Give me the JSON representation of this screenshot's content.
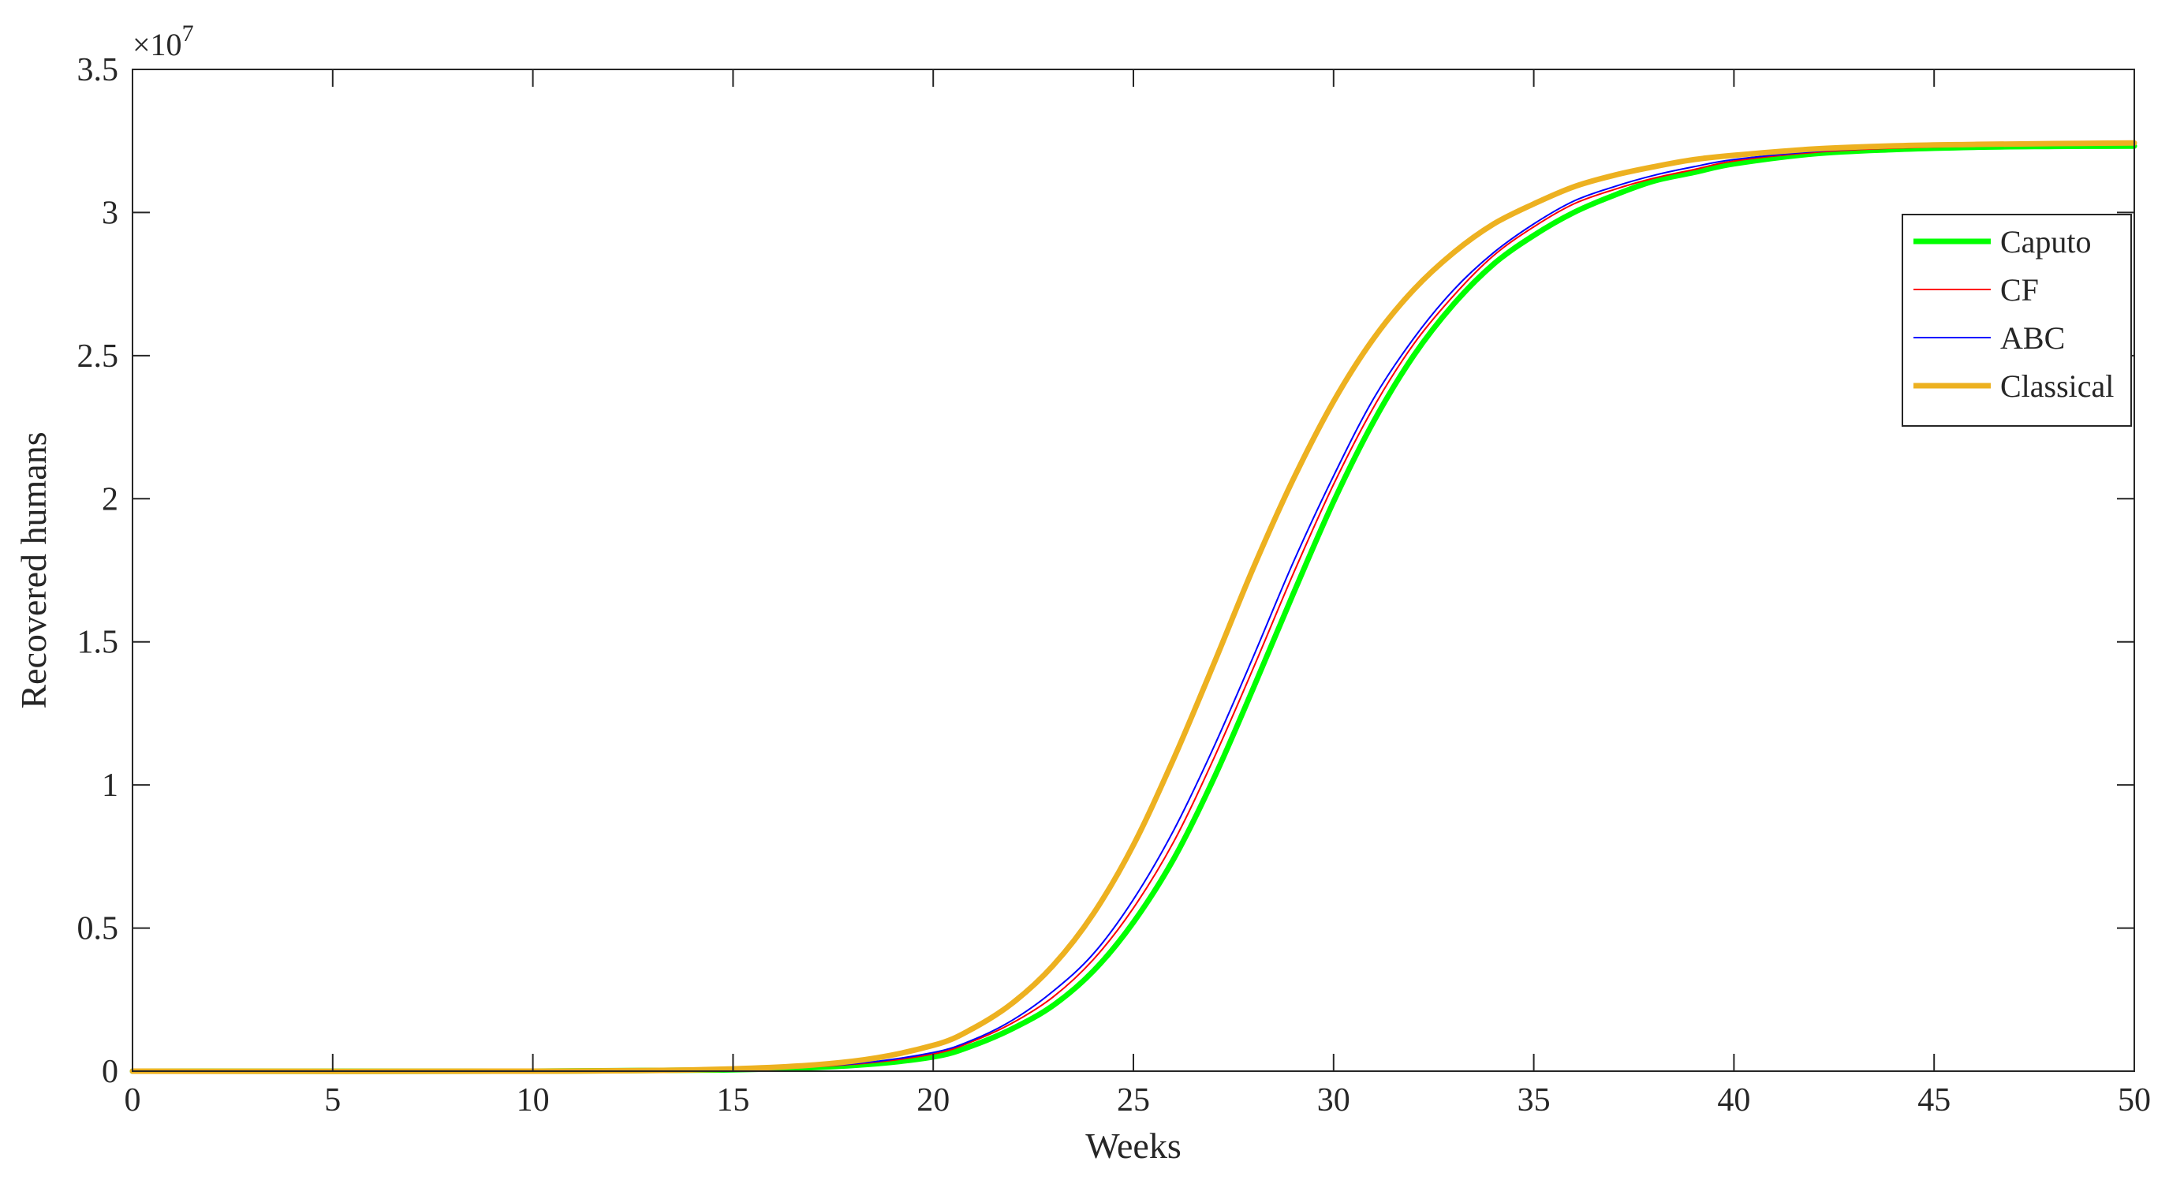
{
  "chart_data": {
    "type": "line",
    "title": "",
    "xlabel": "Weeks",
    "ylabel": "Recovered humans",
    "y_exponent_label": "×10",
    "y_exponent_power": "7",
    "xlim": [
      0,
      50
    ],
    "ylim": [
      0,
      3.5
    ],
    "xticks": [
      0,
      5,
      10,
      15,
      20,
      25,
      30,
      35,
      40,
      45,
      50
    ],
    "yticks": [
      0,
      0.5,
      1,
      1.5,
      2,
      2.5,
      3,
      3.5
    ],
    "grid": false,
    "legend_position": "top-right",
    "series": [
      {
        "name": "Caputo",
        "color": "#00ff00",
        "width": "thick",
        "x": [
          0,
          10,
          15,
          18,
          20,
          21,
          22,
          23,
          24,
          25,
          26,
          27,
          28,
          29,
          30,
          31,
          32,
          33,
          34,
          35,
          36,
          37,
          38,
          39,
          40,
          42,
          44,
          46,
          48,
          50
        ],
        "y": [
          0,
          0,
          0.005,
          0.02,
          0.05,
          0.09,
          0.15,
          0.23,
          0.35,
          0.52,
          0.74,
          1.02,
          1.34,
          1.67,
          1.99,
          2.27,
          2.5,
          2.68,
          2.82,
          2.92,
          3.0,
          3.06,
          3.11,
          3.14,
          3.17,
          3.205,
          3.22,
          3.228,
          3.231,
          3.232
        ]
      },
      {
        "name": "CF",
        "color": "#ff0000",
        "width": "thin",
        "x": [
          0,
          10,
          15,
          18,
          20,
          21,
          22,
          23,
          24,
          25,
          26,
          27,
          28,
          29,
          30,
          31,
          32,
          33,
          34,
          35,
          36,
          37,
          38,
          39,
          40,
          42,
          44,
          46,
          48,
          50
        ],
        "y": [
          0,
          0,
          0.006,
          0.024,
          0.06,
          0.105,
          0.17,
          0.26,
          0.39,
          0.57,
          0.8,
          1.09,
          1.41,
          1.74,
          2.05,
          2.32,
          2.54,
          2.71,
          2.85,
          2.95,
          3.03,
          3.08,
          3.12,
          3.15,
          3.18,
          3.21,
          3.225,
          3.232,
          3.236,
          3.238
        ]
      },
      {
        "name": "ABC",
        "color": "#0000ff",
        "width": "thin",
        "x": [
          0,
          10,
          15,
          18,
          20,
          21,
          22,
          23,
          24,
          25,
          26,
          27,
          28,
          29,
          30,
          31,
          32,
          33,
          34,
          35,
          36,
          37,
          38,
          39,
          40,
          42,
          44,
          46,
          48,
          50
        ],
        "y": [
          0,
          0,
          0.006,
          0.026,
          0.065,
          0.11,
          0.18,
          0.28,
          0.41,
          0.6,
          0.84,
          1.13,
          1.45,
          1.78,
          2.08,
          2.35,
          2.56,
          2.73,
          2.86,
          2.96,
          3.04,
          3.09,
          3.13,
          3.16,
          3.185,
          3.213,
          3.227,
          3.234,
          3.238,
          3.24
        ]
      },
      {
        "name": "Classical",
        "color": "#edb120",
        "width": "thick",
        "x": [
          0,
          10,
          15,
          18,
          20,
          21,
          22,
          23,
          24,
          25,
          26,
          27,
          28,
          29,
          30,
          31,
          32,
          33,
          34,
          35,
          36,
          37,
          38,
          39,
          40,
          42,
          44,
          46,
          48,
          50
        ],
        "y": [
          0,
          0,
          0.008,
          0.035,
          0.09,
          0.15,
          0.24,
          0.37,
          0.55,
          0.79,
          1.09,
          1.42,
          1.76,
          2.07,
          2.34,
          2.56,
          2.73,
          2.86,
          2.96,
          3.03,
          3.09,
          3.13,
          3.16,
          3.185,
          3.2,
          3.222,
          3.233,
          3.238,
          3.241,
          3.243
        ]
      }
    ]
  }
}
